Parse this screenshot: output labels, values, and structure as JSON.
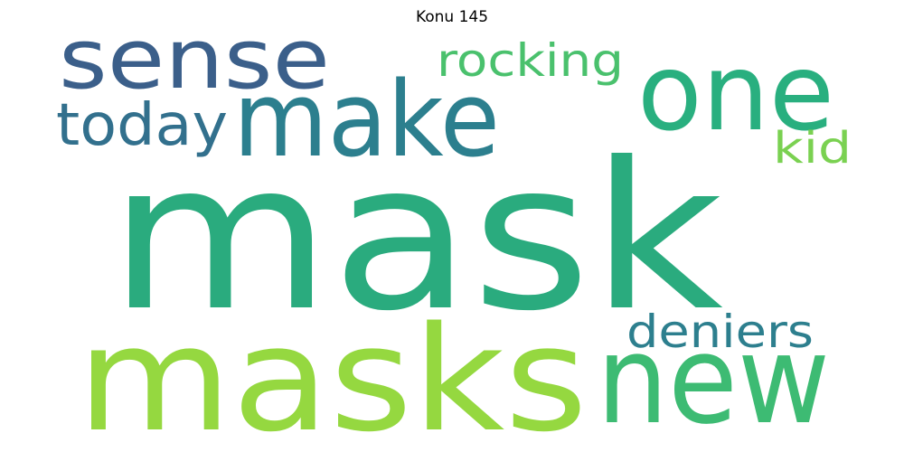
{
  "title": "Konu 145",
  "words": [
    {
      "id": "mask",
      "text": "mask",
      "color": "#2aab7e"
    },
    {
      "id": "masks",
      "text": "masks",
      "color": "#95d840"
    },
    {
      "id": "make",
      "text": "make",
      "color": "#2c7f8e"
    },
    {
      "id": "sense",
      "text": "sense",
      "color": "#3b5f8a"
    },
    {
      "id": "one",
      "text": "one",
      "color": "#29af7f"
    },
    {
      "id": "new",
      "text": "new",
      "color": "#3dbb73"
    },
    {
      "id": "today",
      "text": "today",
      "color": "#32708d"
    },
    {
      "id": "rocking",
      "text": "rocking",
      "color": "#4ac16d"
    },
    {
      "id": "kid",
      "text": "kid",
      "color": "#7ad151"
    },
    {
      "id": "deniers",
      "text": "deniers",
      "color": "#2d7f8e"
    }
  ]
}
